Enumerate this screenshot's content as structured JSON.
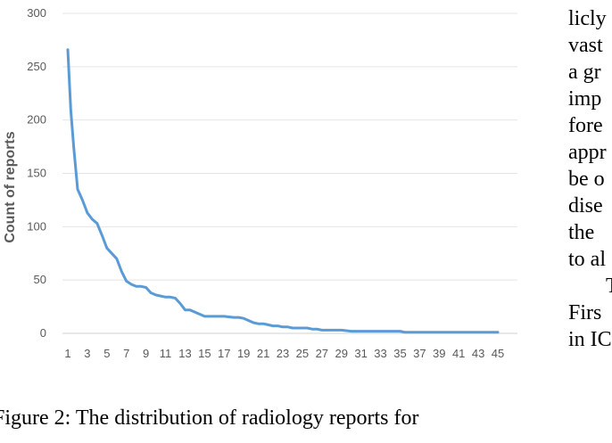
{
  "chart_data": {
    "type": "line",
    "title": "",
    "xlabel": "",
    "ylabel": "Count of reports",
    "ylim": [
      0,
      300
    ],
    "yticks": [
      0,
      50,
      100,
      150,
      200,
      250,
      300
    ],
    "xlim": [
      1,
      45
    ],
    "xtick_labels": [
      "1",
      "3",
      "5",
      "7",
      "9",
      "11",
      "13",
      "15",
      "17",
      "19",
      "21",
      "23",
      "25",
      "27",
      "29",
      "31",
      "33",
      "35",
      "37",
      "39",
      "41",
      "43",
      "45"
    ],
    "grid": true,
    "legend": "none",
    "series": [
      {
        "color": "#5b9bd5",
        "x": [
          1,
          1.3,
          1.6,
          2,
          2.5,
          3,
          3.5,
          4,
          4.5,
          5,
          5.5,
          6,
          6.5,
          7,
          7.5,
          8,
          8.5,
          9,
          9.5,
          10,
          10.5,
          11,
          11.5,
          12,
          12.5,
          13,
          13.5,
          14,
          14.5,
          15,
          15.5,
          16,
          17,
          18,
          18.5,
          19,
          19.5,
          20,
          20.5,
          21,
          21.5,
          22,
          22.5,
          23,
          23.5,
          24,
          24.5,
          25,
          25.5,
          26,
          26.5,
          27,
          28,
          29,
          30,
          31,
          32,
          33,
          34,
          35,
          35.5,
          36,
          37,
          38,
          39,
          40,
          41,
          42,
          43,
          44,
          45
        ],
        "y": [
          266,
          210,
          175,
          135,
          125,
          113,
          107,
          103,
          92,
          80,
          75,
          70,
          58,
          49,
          46,
          44,
          44,
          43,
          38,
          36,
          35,
          34,
          34,
          33,
          28,
          22,
          22,
          20,
          18,
          16,
          16,
          16,
          16,
          15,
          15,
          14,
          12,
          10,
          9,
          9,
          8,
          7,
          7,
          6,
          6,
          5,
          5,
          5,
          5,
          4,
          4,
          3,
          3,
          3,
          2,
          2,
          2,
          2,
          2,
          2,
          1,
          1,
          1,
          1,
          1,
          1,
          1,
          1,
          1,
          1,
          1
        ]
      }
    ]
  },
  "caption": "Figure 2: The distribution of radiology reports for",
  "side_text": [
    "licly",
    "vast",
    "a gr",
    "imp",
    "fore",
    "appr",
    "be o",
    "dise",
    "the",
    "to al",
    "T",
    "Firs",
    "in IC"
  ]
}
